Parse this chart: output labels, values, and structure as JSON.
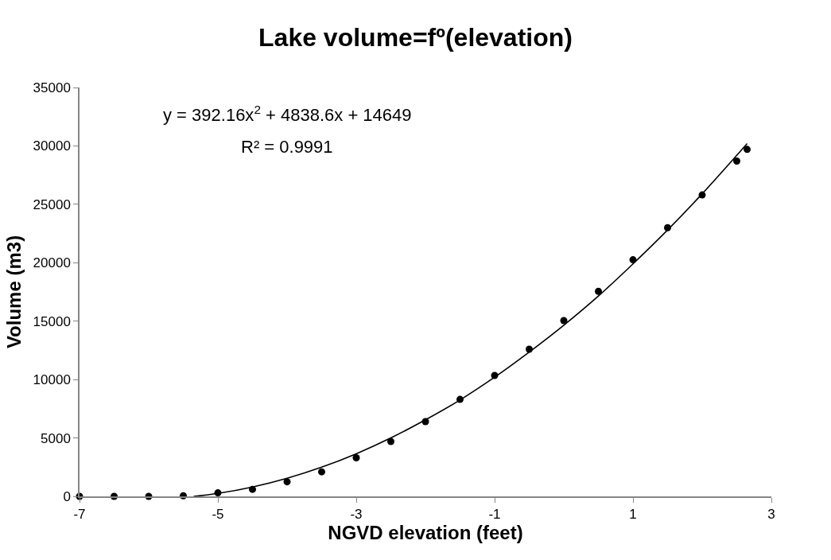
{
  "chart_data": {
    "type": "scatter",
    "title": "Lake volume=fº(elevation)",
    "xlabel": "NGVD elevation (feet)",
    "ylabel": "Volume (m3)",
    "annotations": [
      "y = 392.16x$^{2}$ + 4838.6x + 14649",
      "R² = 0.9991"
    ],
    "series": [
      {
        "color": "#000000",
        "marker": "circle",
        "x": [
          -7,
          -6.5,
          -6,
          -5.5,
          -5,
          -4.5,
          -4,
          -3.5,
          -3,
          -2.5,
          -2,
          -1.5,
          -1,
          -0.5,
          0,
          0.5,
          1,
          1.5,
          2,
          2.5,
          2.65
        ],
        "values": [
          0,
          0,
          0,
          50,
          300,
          600,
          1250,
          2100,
          3300,
          4700,
          6400,
          8300,
          10350,
          12600,
          15050,
          17550,
          20250,
          23000,
          25800,
          28700,
          29700
        ]
      },
      {
        "type": "line",
        "color": "#000000",
        "line_style": "solid",
        "x": [
          -5.35,
          -5,
          -4.5,
          -4,
          -3.5,
          -3,
          -2.5,
          -2,
          -1.5,
          -1,
          -0.5,
          0,
          0.5,
          1,
          1.5,
          2,
          2.65
        ],
        "values": [
          0,
          250,
          800,
          1550,
          2500,
          3650,
          5000,
          6550,
          8250,
          10200,
          12350,
          14650,
          17150,
          19900,
          22800,
          25900,
          30200
        ]
      }
    ],
    "xlim": [
      -7,
      3
    ],
    "xticks": [
      -7,
      -5,
      -3,
      -1,
      1,
      3
    ],
    "ylim": [
      0,
      35000
    ],
    "yticks": [
      0,
      5000,
      10000,
      15000,
      20000,
      25000,
      30000,
      35000
    ]
  }
}
